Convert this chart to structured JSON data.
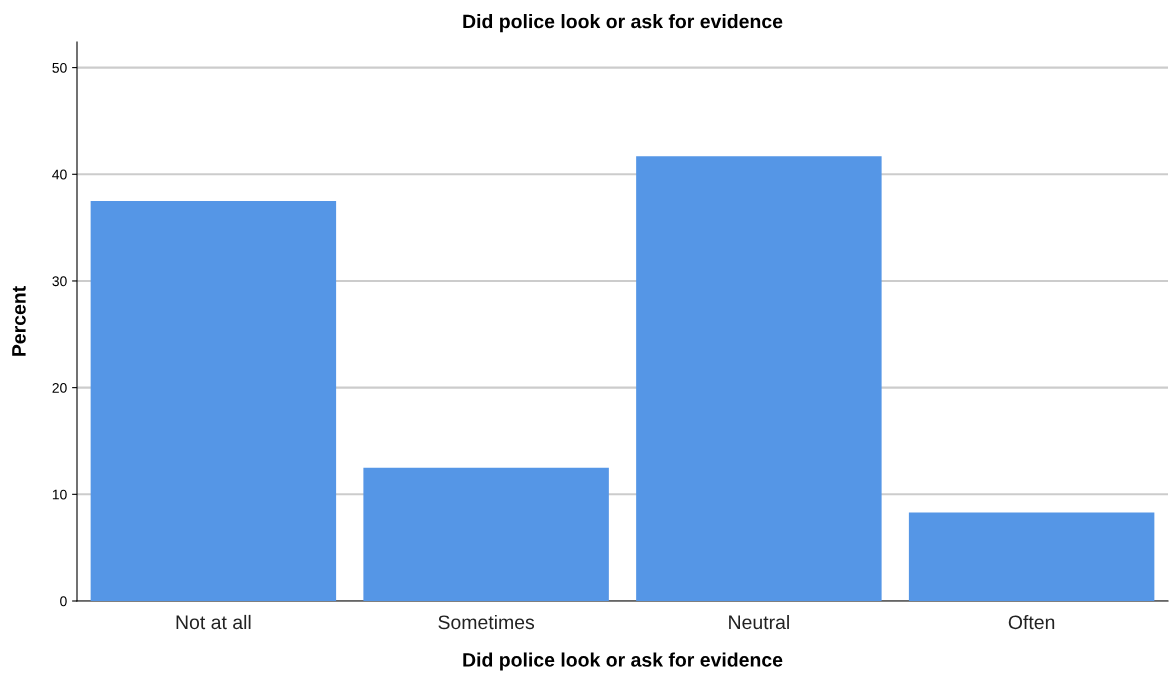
{
  "chart_data": {
    "type": "bar",
    "title": "Did police look or ask for evidence",
    "xlabel": "Did police look or ask for evidence",
    "ylabel": "Percent",
    "categories": [
      "Not at all",
      "Sometimes",
      "Neutral",
      "Often"
    ],
    "values": [
      37.5,
      12.5,
      41.7,
      8.3
    ],
    "color": "#5596e6",
    "ylim": [
      0,
      52.4
    ],
    "yticks": [
      0,
      10,
      20,
      30,
      40,
      50
    ],
    "grid": "y",
    "legend": false
  }
}
